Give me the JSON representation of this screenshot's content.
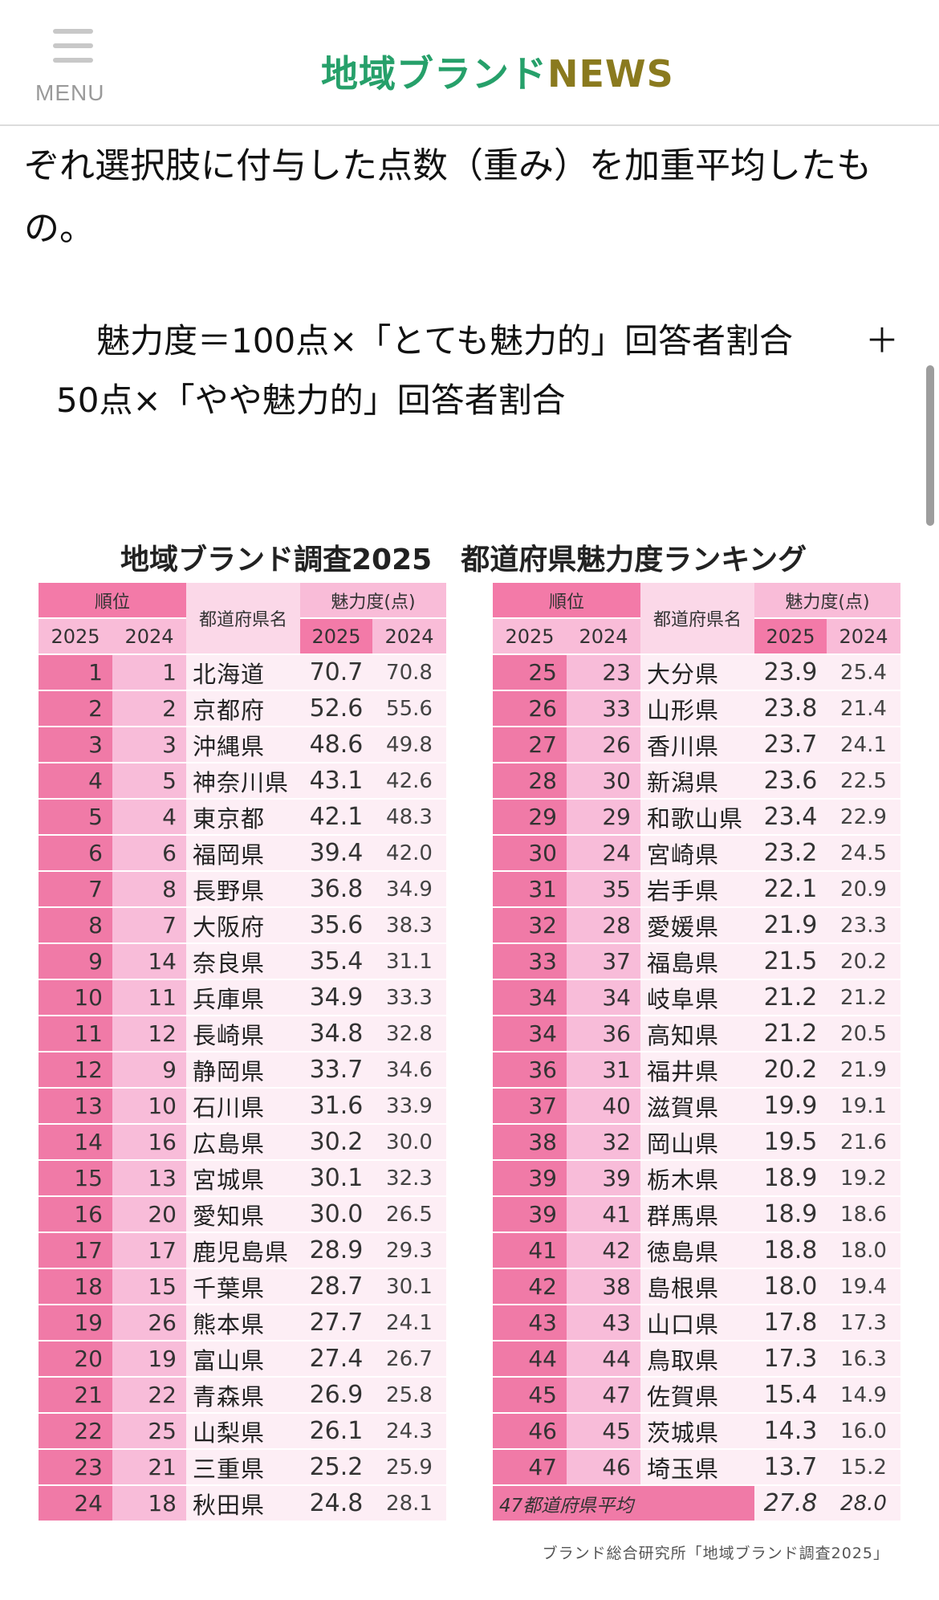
{
  "header": {
    "menu_label": "MENU",
    "logo_jp": "地域ブランド",
    "logo_en": "NEWS"
  },
  "article": {
    "paragraph": "ぞれ選択肢に付与した点数（重み）を加重平均したもの。",
    "formula_line1": "魅力度＝100点×「とても魅力的」回答者割合",
    "formula_plus": "＋",
    "formula_line2": "50点×「やや魅力的」回答者割合"
  },
  "chart": {
    "title": "地域ブランド調査2025　都道府県魅力度ランキング",
    "headers": {
      "rank": "順位",
      "prefecture": "都道府県名",
      "score": "魅力度(点)",
      "year_2025": "2025",
      "year_2024": "2024"
    },
    "average_label": "47都道府県平均",
    "average_2025": "27.8",
    "average_2024": "28.0",
    "source": "ブランド総合研究所「地域ブランド調査2025」"
  },
  "chart_data": {
    "type": "table",
    "title": "地域ブランド調査2025　都道府県魅力度ランキング",
    "columns": [
      "順位2025",
      "順位2024",
      "都道府県名",
      "魅力度2025",
      "魅力度2024"
    ],
    "rows_left": [
      [
        "1",
        "1",
        "北海道",
        "70.7",
        "70.8"
      ],
      [
        "2",
        "2",
        "京都府",
        "52.6",
        "55.6"
      ],
      [
        "3",
        "3",
        "沖縄県",
        "48.6",
        "49.8"
      ],
      [
        "4",
        "5",
        "神奈川県",
        "43.1",
        "42.6"
      ],
      [
        "5",
        "4",
        "東京都",
        "42.1",
        "48.3"
      ],
      [
        "6",
        "6",
        "福岡県",
        "39.4",
        "42.0"
      ],
      [
        "7",
        "8",
        "長野県",
        "36.8",
        "34.9"
      ],
      [
        "8",
        "7",
        "大阪府",
        "35.6",
        "38.3"
      ],
      [
        "9",
        "14",
        "奈良県",
        "35.4",
        "31.1"
      ],
      [
        "10",
        "11",
        "兵庫県",
        "34.9",
        "33.3"
      ],
      [
        "11",
        "12",
        "長崎県",
        "34.8",
        "32.8"
      ],
      [
        "12",
        "9",
        "静岡県",
        "33.7",
        "34.6"
      ],
      [
        "13",
        "10",
        "石川県",
        "31.6",
        "33.9"
      ],
      [
        "14",
        "16",
        "広島県",
        "30.2",
        "30.0"
      ],
      [
        "15",
        "13",
        "宮城県",
        "30.1",
        "32.3"
      ],
      [
        "16",
        "20",
        "愛知県",
        "30.0",
        "26.5"
      ],
      [
        "17",
        "17",
        "鹿児島県",
        "28.9",
        "29.3"
      ],
      [
        "18",
        "15",
        "千葉県",
        "28.7",
        "30.1"
      ],
      [
        "19",
        "26",
        "熊本県",
        "27.7",
        "24.1"
      ],
      [
        "20",
        "19",
        "富山県",
        "27.4",
        "26.7"
      ],
      [
        "21",
        "22",
        "青森県",
        "26.9",
        "25.8"
      ],
      [
        "22",
        "25",
        "山梨県",
        "26.1",
        "24.3"
      ],
      [
        "23",
        "21",
        "三重県",
        "25.2",
        "25.9"
      ],
      [
        "24",
        "18",
        "秋田県",
        "24.8",
        "28.1"
      ]
    ],
    "rows_right": [
      [
        "25",
        "23",
        "大分県",
        "23.9",
        "25.4"
      ],
      [
        "26",
        "33",
        "山形県",
        "23.8",
        "21.4"
      ],
      [
        "27",
        "26",
        "香川県",
        "23.7",
        "24.1"
      ],
      [
        "28",
        "30",
        "新潟県",
        "23.6",
        "22.5"
      ],
      [
        "29",
        "29",
        "和歌山県",
        "23.4",
        "22.9"
      ],
      [
        "30",
        "24",
        "宮崎県",
        "23.2",
        "24.5"
      ],
      [
        "31",
        "35",
        "岩手県",
        "22.1",
        "20.9"
      ],
      [
        "32",
        "28",
        "愛媛県",
        "21.9",
        "23.3"
      ],
      [
        "33",
        "37",
        "福島県",
        "21.5",
        "20.2"
      ],
      [
        "34",
        "34",
        "岐阜県",
        "21.2",
        "21.2"
      ],
      [
        "34",
        "36",
        "高知県",
        "21.2",
        "20.5"
      ],
      [
        "36",
        "31",
        "福井県",
        "20.2",
        "21.9"
      ],
      [
        "37",
        "40",
        "滋賀県",
        "19.9",
        "19.1"
      ],
      [
        "38",
        "32",
        "岡山県",
        "19.5",
        "21.6"
      ],
      [
        "39",
        "39",
        "栃木県",
        "18.9",
        "19.2"
      ],
      [
        "39",
        "41",
        "群馬県",
        "18.9",
        "18.6"
      ],
      [
        "41",
        "42",
        "徳島県",
        "18.8",
        "18.0"
      ],
      [
        "42",
        "38",
        "島根県",
        "18.0",
        "19.4"
      ],
      [
        "43",
        "43",
        "山口県",
        "17.8",
        "17.3"
      ],
      [
        "44",
        "44",
        "鳥取県",
        "17.3",
        "16.3"
      ],
      [
        "45",
        "47",
        "佐賀県",
        "15.4",
        "14.9"
      ],
      [
        "46",
        "45",
        "茨城県",
        "14.3",
        "16.0"
      ],
      [
        "47",
        "46",
        "埼玉県",
        "13.7",
        "15.2"
      ]
    ]
  }
}
